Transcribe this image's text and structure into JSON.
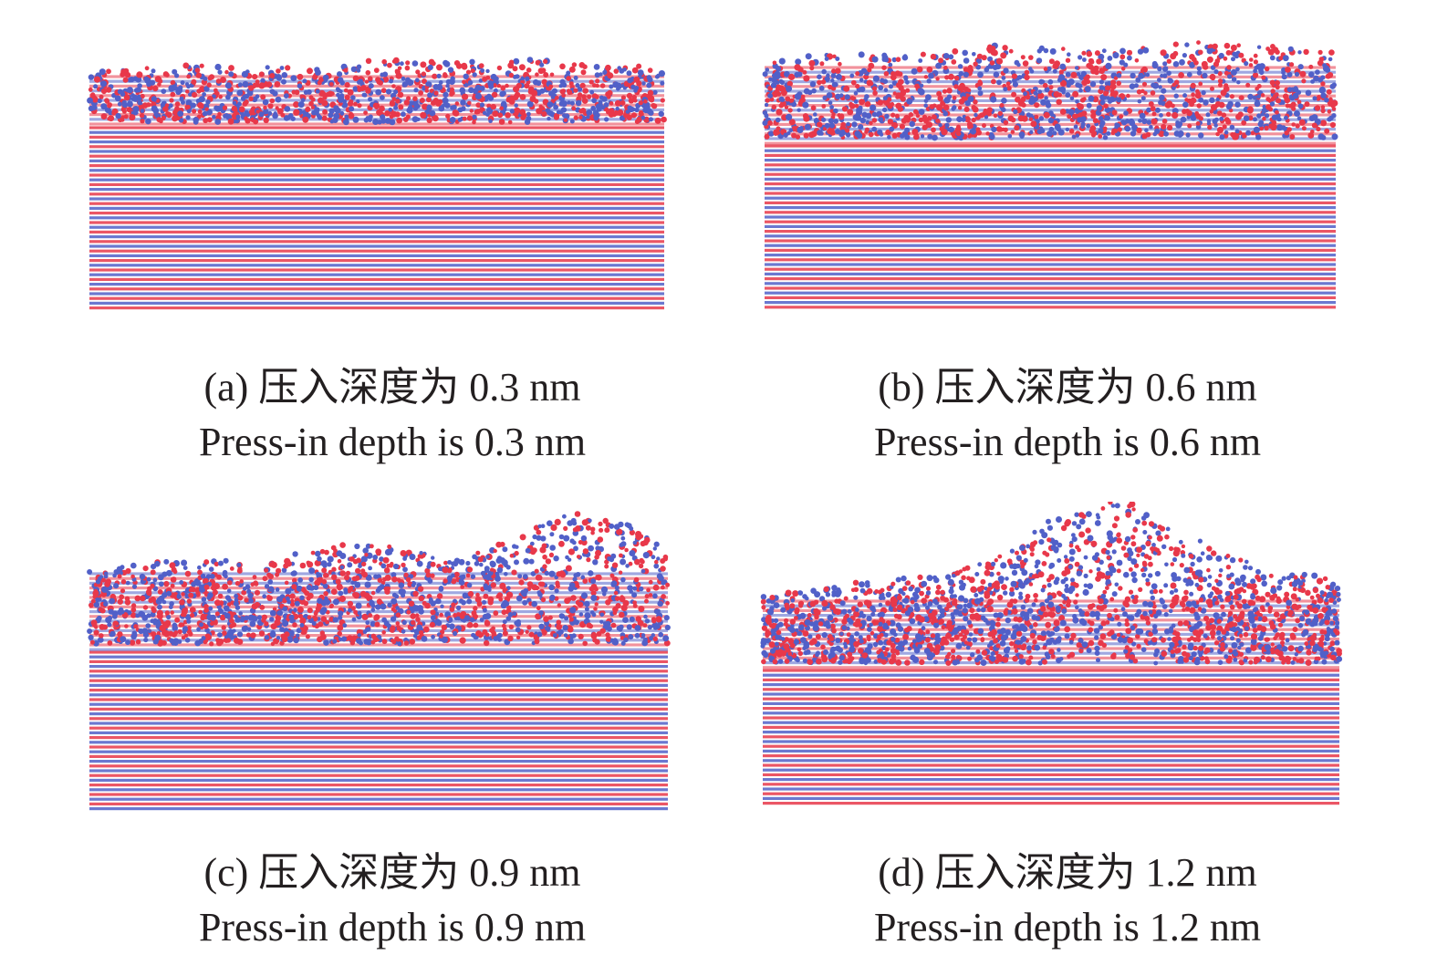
{
  "colors": {
    "background": "#ffffff",
    "atom_red": "#e8384a",
    "atom_blue": "#5160c8",
    "text": "#231f20"
  },
  "panels": [
    {
      "id": "a",
      "caption_cn": "(a) 压入深度为 0.3 nm",
      "caption_en": "Press-in depth is 0.3 nm",
      "depth_nm": 0.3
    },
    {
      "id": "b",
      "caption_cn": "(b) 压入深度为 0.6 nm",
      "caption_en": "Press-in depth is 0.6 nm",
      "depth_nm": 0.6
    },
    {
      "id": "c",
      "caption_cn": "(c) 压入深度为 0.9 nm",
      "caption_en": "Press-in depth is 0.9 nm",
      "depth_nm": 0.9
    },
    {
      "id": "d",
      "caption_cn": "(d) 压入深度为 1.2 nm",
      "caption_en": "Press-in depth is 1.2 nm",
      "depth_nm": 1.2
    }
  ]
}
